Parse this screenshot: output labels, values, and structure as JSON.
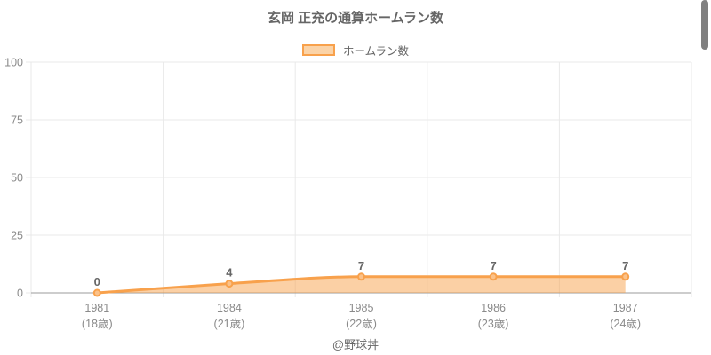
{
  "chart_data": {
    "type": "area",
    "title": "玄岡 正充の通算ホームラン数",
    "legend_label": "ホームラン数",
    "legend_position": "top",
    "categories": [
      "1981",
      "1984",
      "1985",
      "1986",
      "1987"
    ],
    "category_sublabels": [
      "(18歳)",
      "(21歳)",
      "(22歳)",
      "(23歳)",
      "(24歳)"
    ],
    "series": [
      {
        "name": "ホームラン数",
        "values": [
          0,
          4,
          7,
          7,
          7
        ]
      }
    ],
    "ylim": [
      0,
      100
    ],
    "yticks": [
      0,
      25,
      50,
      75,
      100
    ],
    "grid": true,
    "xlabel": "",
    "ylabel": "",
    "footer": "@野球丼",
    "colors": {
      "line": "#f8a14c",
      "area_fill": "rgba(248,161,76,0.5)",
      "point_fill": "#fbc28a",
      "legend_fill": "#fbd3a7",
      "grid": "#e9e9e9",
      "axis": "#9b9b9b",
      "tick_text": "#8a8a8a",
      "value_label_text": "#666666",
      "scrollbar": "#808080"
    }
  }
}
